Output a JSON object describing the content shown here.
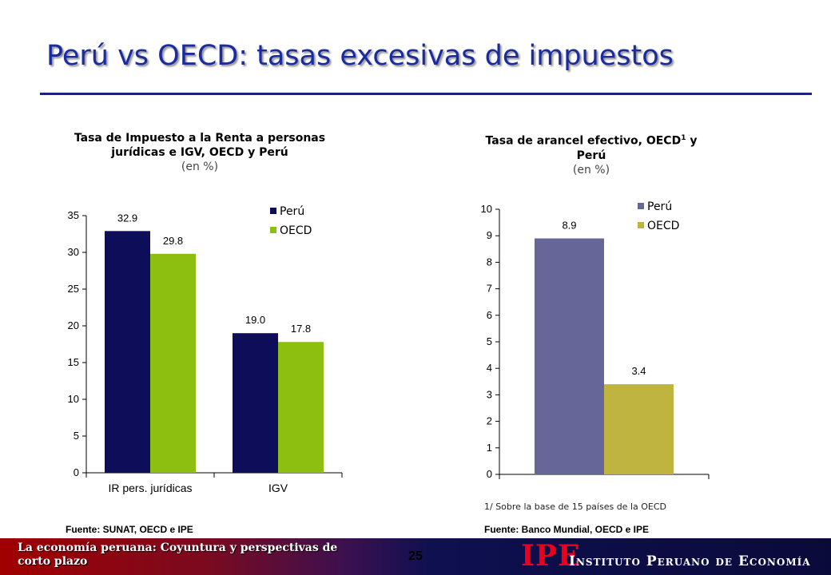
{
  "slide": {
    "title": "Perú vs OECD: tasas excesivas de impuestos"
  },
  "chart_data": [
    {
      "type": "bar",
      "title": "Tasa de Impuesto a la Renta a personas jurídicas e IGV, OECD y Perú",
      "subtitle": "(en %)",
      "categories": [
        "IR pers. jurídicas",
        "IGV"
      ],
      "series": [
        {
          "name": "Perú",
          "values": [
            32.9,
            19.0
          ],
          "labels": [
            "32.9",
            "19.0"
          ],
          "color": "#0d0d5a"
        },
        {
          "name": "OECD",
          "values": [
            29.8,
            17.8
          ],
          "labels": [
            "29.8",
            "17.8"
          ],
          "color": "#8cbf10"
        }
      ],
      "ylim": [
        0,
        35
      ],
      "yticks": [
        "0",
        "5",
        "10",
        "15",
        "20",
        "25",
        "30",
        "35"
      ],
      "legend_position": "top-right",
      "grid": false,
      "source": "Fuente: SUNAT, OECD e IPE"
    },
    {
      "type": "bar",
      "title": "Tasa de arancel efectivo, OECD",
      "title_sup": "1",
      "title_end": " y Perú",
      "subtitle": "(en %)",
      "categories": [
        ""
      ],
      "series": [
        {
          "name": "Perú",
          "values": [
            8.9
          ],
          "labels": [
            "8.9"
          ],
          "color": "#666699"
        },
        {
          "name": "OECD",
          "values": [
            3.4
          ],
          "labels": [
            "3.4"
          ],
          "color": "#c0b440"
        }
      ],
      "ylim": [
        0,
        10
      ],
      "yticks": [
        "0",
        "1",
        "2",
        "3",
        "4",
        "5",
        "6",
        "7",
        "8",
        "9",
        "10"
      ],
      "legend_position": "top-right",
      "grid": false,
      "note": "1/ Sobre la base de 15 países de la OECD",
      "source": "Fuente: Banco Mundial, OECD e IPE"
    }
  ],
  "footer": {
    "subtitle": "La economía peruana: Coyuntura y perspectivas de corto plazo",
    "page_number": "25",
    "logo_abbr": "IPE",
    "logo_name": "Instituto Peruano de Economía"
  }
}
